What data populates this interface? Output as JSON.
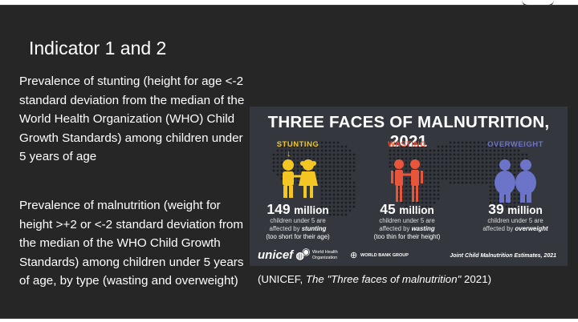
{
  "slide": {
    "title": "Indicator 1 and 2",
    "paragraph1": "Prevalence of stunting (height for age <-2 standard deviation from the median of the World Health Organization (WHO) Child Growth Standards) among children under 5 years of age",
    "paragraph2": "Prevalence of malnutrition (weight for height >+2 or <-2 standard deviation from the median of the WHO Child Growth Standards) among children under 5 years of age, by type (wasting and overweight)"
  },
  "infographic": {
    "title": "THREE FACES OF MALNUTRITION, 2021",
    "columns": [
      {
        "label": "STUNTING",
        "color": "#f3c623",
        "number": "149",
        "unit": "million",
        "line1": "children under 5 are",
        "affected_prefix": "affected by ",
        "affected_word": "stunting",
        "note": "(too short for their age)",
        "icon": "stunting-children-icon"
      },
      {
        "label": "WASTING",
        "color": "#e8553b",
        "number": "45",
        "unit": "million",
        "line1": "children under 5 are",
        "affected_prefix": "affected by ",
        "affected_word": "wasting",
        "note": "(too thin for their height)",
        "icon": "wasting-children-icon"
      },
      {
        "label": "OVERWEIGHT",
        "color": "#6b74c9",
        "number": "39",
        "unit": "million",
        "line1": "children under 5 are",
        "affected_prefix": "affected by ",
        "affected_word": "overweight",
        "note": "",
        "icon": "overweight-children-icon"
      }
    ],
    "footer": {
      "unicef": "unicef",
      "who_line1": "World Health",
      "who_line2": "Organization",
      "worldbank": "WORLD BANK GROUP",
      "estimates": "Joint Child Malnutrition Estimates, 2021"
    }
  },
  "caption": {
    "prefix": "(UNICEF, ",
    "title": "The \"Three faces of malnutrition\"",
    "suffix": " 2021)"
  }
}
